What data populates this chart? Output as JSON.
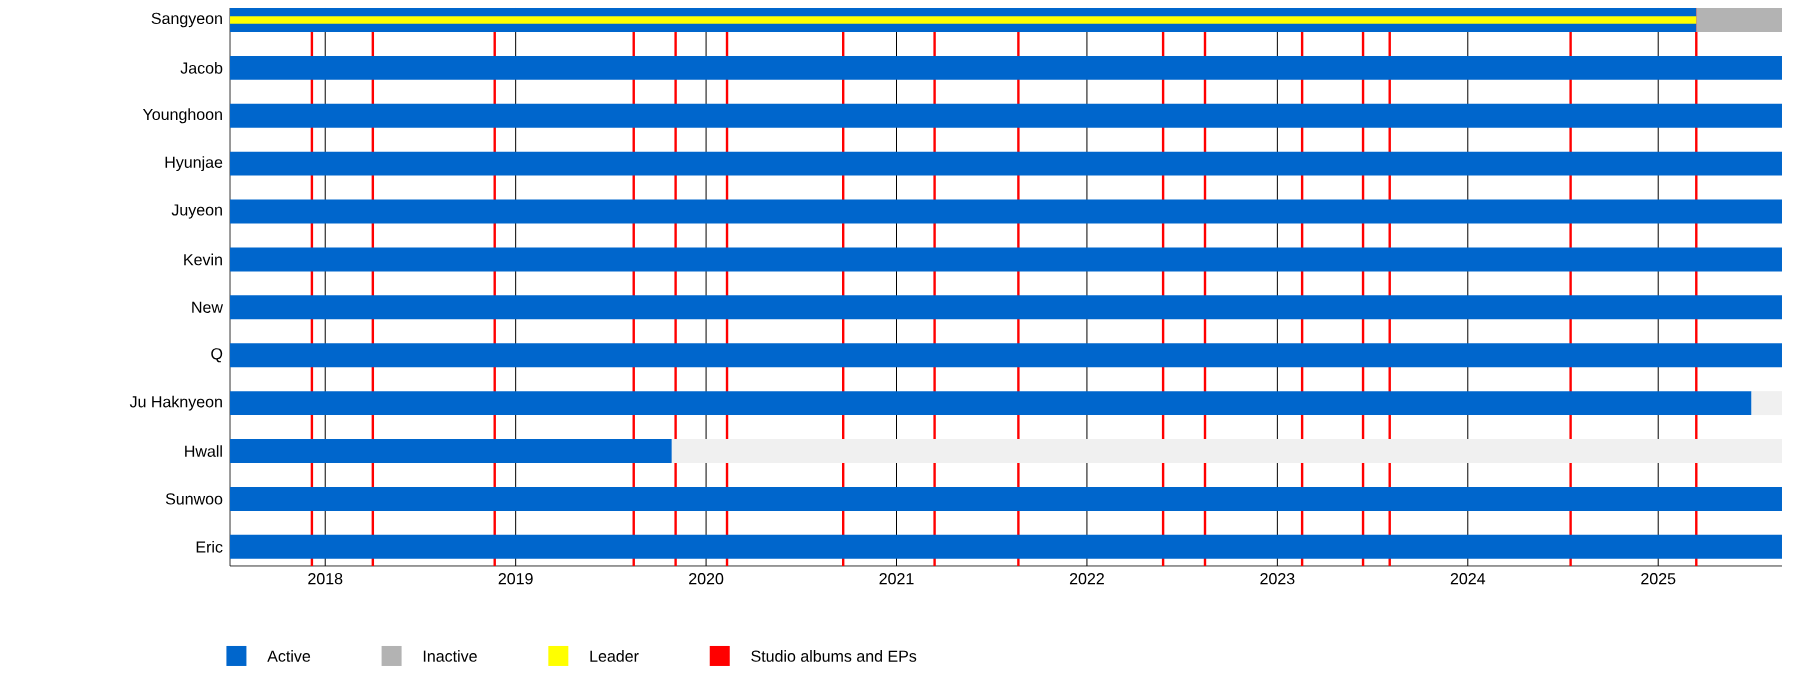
{
  "chart_data": {
    "type": "bar",
    "orientation": "horizontal",
    "categories": [
      "Sangyeon",
      "Jacob",
      "Younghoon",
      "Hyunjae",
      "Juyeon",
      "Kevin",
      "New",
      "Q",
      "Ju Haknyeon",
      "Hwall",
      "Sunwoo",
      "Eric"
    ],
    "series": [
      {
        "name": "Active",
        "color": "#0066cc",
        "base": [
          2017.5,
          2017.5,
          2017.5,
          2017.5,
          2017.5,
          2017.5,
          2017.5,
          2017.5,
          2017.5,
          2017.5,
          2017.5,
          2017.5
        ],
        "values": [
          7.7,
          8.15,
          8.15,
          8.15,
          8.15,
          8.15,
          8.15,
          8.15,
          7.99,
          2.32,
          8.15,
          8.15
        ]
      },
      {
        "name": "Inactive",
        "color": "#b3b3b3",
        "base": [
          2025.2,
          null,
          null,
          null,
          null,
          null,
          null,
          null,
          null,
          null,
          null,
          null
        ],
        "values": [
          0.45,
          null,
          null,
          null,
          null,
          null,
          null,
          null,
          null,
          null,
          null,
          null
        ]
      },
      {
        "name": "Leader",
        "color": "#ffff00",
        "base": [
          2017.5,
          null,
          null,
          null,
          null,
          null,
          null,
          null,
          null,
          null,
          null,
          null
        ],
        "values": [
          7.7,
          null,
          null,
          null,
          null,
          null,
          null,
          null,
          null,
          null,
          null,
          null
        ]
      },
      {
        "color": "#f0f0f0",
        "base": [
          null,
          null,
          null,
          null,
          null,
          null,
          null,
          null,
          2025.49,
          2019.82,
          null,
          null
        ],
        "values": [
          null,
          null,
          null,
          null,
          null,
          null,
          null,
          null,
          0.16,
          5.83,
          null,
          null
        ]
      }
    ],
    "xlim": [
      2017.5,
      2025.65
    ],
    "xticks": [
      2018,
      2019,
      2020,
      2021,
      2022,
      2023,
      2024,
      2025
    ],
    "grid": "x",
    "legend": "bottom",
    "ref_lines": [
      {
        "axis": "x",
        "value": 2017.93,
        "color": "#ff0000",
        "label": "Studio albums and EPs"
      },
      {
        "axis": "x",
        "value": 2018.25,
        "color": "#ff0000"
      },
      {
        "axis": "x",
        "value": 2018.89,
        "color": "#ff0000"
      },
      {
        "axis": "x",
        "value": 2019.62,
        "color": "#ff0000"
      },
      {
        "axis": "x",
        "value": 2019.84,
        "color": "#ff0000"
      },
      {
        "axis": "x",
        "value": 2020.11,
        "color": "#ff0000"
      },
      {
        "axis": "x",
        "value": 2020.72,
        "color": "#ff0000"
      },
      {
        "axis": "x",
        "value": 2021.2,
        "color": "#ff0000"
      },
      {
        "axis": "x",
        "value": 2021.64,
        "color": "#ff0000"
      },
      {
        "axis": "x",
        "value": 2022.4,
        "color": "#ff0000"
      },
      {
        "axis": "x",
        "value": 2022.62,
        "color": "#ff0000"
      },
      {
        "axis": "x",
        "value": 2023.13,
        "color": "#ff0000"
      },
      {
        "axis": "x",
        "value": 2023.45,
        "color": "#ff0000"
      },
      {
        "axis": "x",
        "value": 2023.59,
        "color": "#ff0000"
      },
      {
        "axis": "x",
        "value": 2024.54,
        "color": "#ff0000"
      },
      {
        "axis": "x",
        "value": 2025.2,
        "color": "#ff0000"
      }
    ]
  }
}
